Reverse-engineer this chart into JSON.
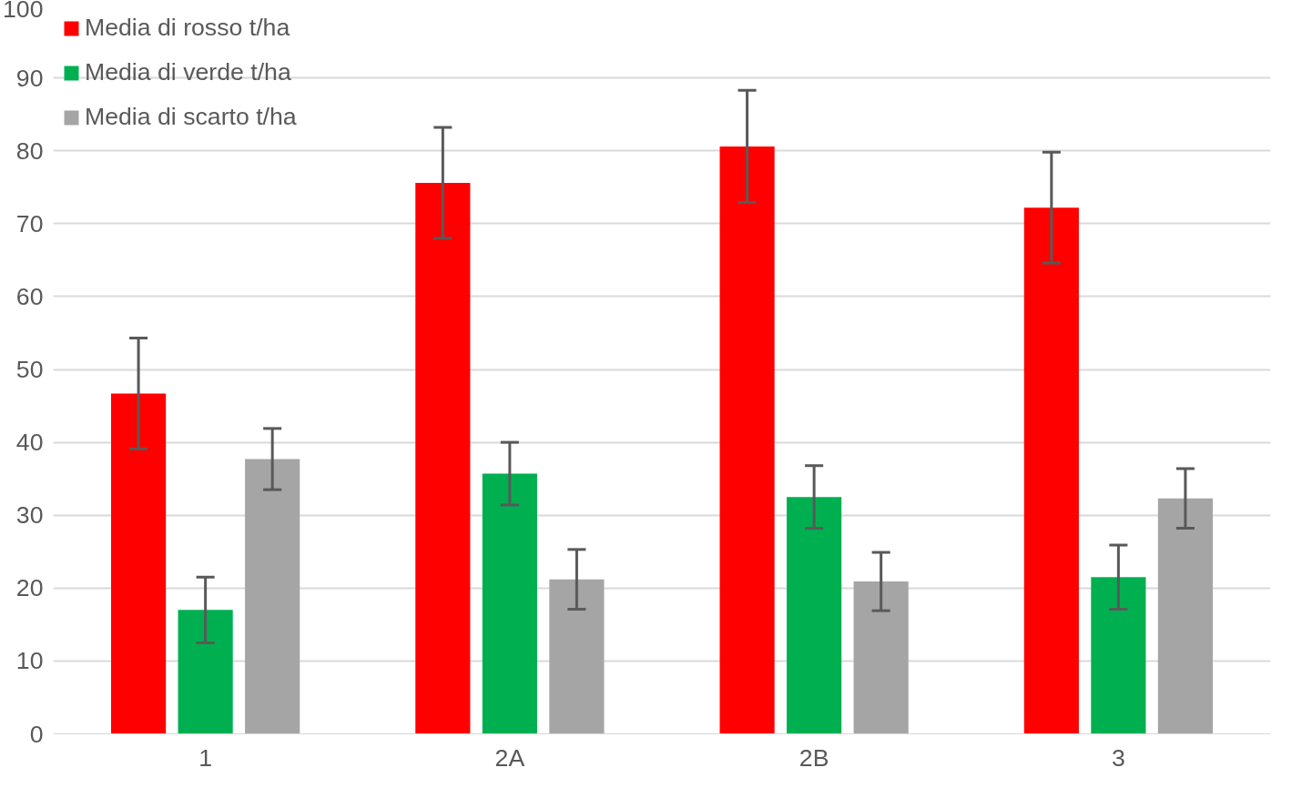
{
  "chart_data": {
    "type": "bar",
    "categories": [
      "1",
      "2A",
      "2B",
      "3"
    ],
    "series": [
      {
        "name": "Media di rosso t/ha",
        "color": "#ff0000",
        "values": [
          46.7,
          75.6,
          80.6,
          72.2
        ],
        "errors": [
          7.6,
          7.6,
          7.7,
          7.6
        ]
      },
      {
        "name": "Media di verde t/ha",
        "color": "#00b050",
        "values": [
          17.0,
          35.7,
          32.5,
          21.5
        ],
        "errors": [
          4.5,
          4.3,
          4.3,
          4.4
        ]
      },
      {
        "name": "Media di scarto t/ha",
        "color": "#a5a5a5",
        "values": [
          37.7,
          21.2,
          20.9,
          32.3
        ],
        "errors": [
          4.2,
          4.1,
          4.0,
          4.1
        ]
      }
    ],
    "ylim": [
      0,
      100
    ],
    "yticks": [
      0,
      10,
      20,
      30,
      40,
      50,
      60,
      70,
      80,
      90,
      100
    ],
    "grid": "y",
    "legend": "top left"
  }
}
